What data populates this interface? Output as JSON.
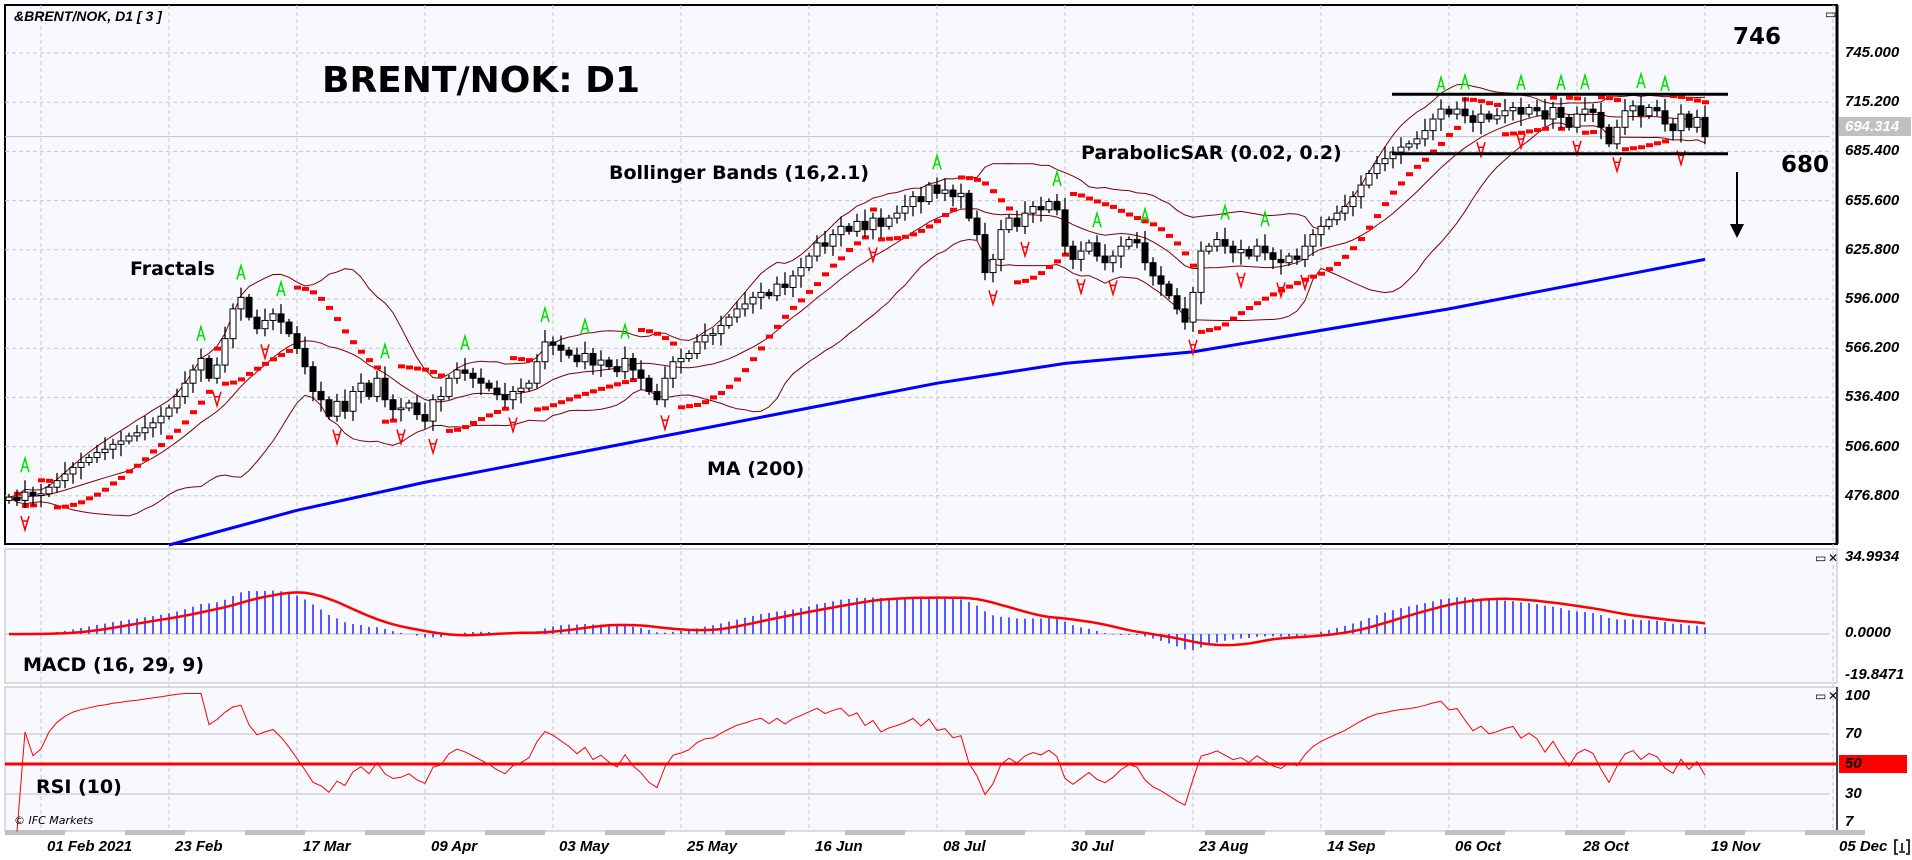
{
  "header": {
    "symbol": "&BRENT/NOK, D1 [ 3 ]"
  },
  "annotations": {
    "title": "BRENT/NOK: D1",
    "fractals": "Fractals",
    "bollinger": "Bollinger Bands (16,2.1)",
    "sar": "ParabolicSAR (0.02, 0.2)",
    "ma": "MA (200)",
    "macd": "MACD (16, 29, 9)",
    "rsi": "RSI (10)",
    "level_high": "746",
    "level_low": "680",
    "copyright": "© IFC Markets"
  },
  "price_axis": {
    "labels": [
      "745.000",
      "715.200",
      "685.400",
      "655.600",
      "625.800",
      "596.000",
      "566.200",
      "536.400",
      "506.600",
      "476.800"
    ],
    "current_price": "694.314"
  },
  "macd_axis": {
    "labels": [
      "34.9934",
      "0.0000",
      "-19.8471"
    ]
  },
  "rsi_axis": {
    "labels": [
      "100",
      "70",
      "50",
      "30",
      "7"
    ]
  },
  "colors": {
    "background": "#f7f9ff",
    "bollinger": "#800000",
    "sar": "#ff0000",
    "ma": "#0000ff",
    "fractal_up": "#00e000",
    "fractal_down": "#ff0000",
    "macd_hist": "#0000ff",
    "macd_signal": "#ff0000",
    "rsi": "#ff0000",
    "current_price_box": "#c0c0c0",
    "rsi_level_box": "#ff0000"
  },
  "chart_data": {
    "type": "candlestick",
    "title": "BRENT/NOK: D1",
    "x_ticks": [
      "01 Feb 2021",
      "23 Feb",
      "17 Mar",
      "09 Apr",
      "03 May",
      "25 May",
      "16 Jun",
      "08 Jul",
      "30 Jul",
      "23 Aug",
      "14 Sep",
      "06 Oct",
      "28 Oct",
      "19 Nov",
      "05 Dec"
    ],
    "ylim": [
      447,
      775
    ],
    "closes": [
      476,
      474,
      479,
      477,
      478,
      482,
      486,
      490,
      494,
      497,
      500,
      503,
      505,
      508,
      510,
      513,
      515,
      518,
      521,
      525,
      530,
      537,
      545,
      553,
      560,
      548,
      556,
      572,
      590,
      597,
      585,
      578,
      583,
      587,
      582,
      575,
      566,
      555,
      540,
      535,
      525,
      534,
      528,
      540,
      545,
      537,
      548,
      535,
      529,
      530,
      533,
      526,
      522,
      535,
      537,
      548,
      553,
      551,
      548,
      545,
      542,
      538,
      535,
      540,
      542,
      545,
      558,
      570,
      568,
      565,
      562,
      558,
      563,
      556,
      559,
      555,
      552,
      560,
      553,
      548,
      540,
      535,
      548,
      558,
      560,
      563,
      570,
      574,
      575,
      580,
      585,
      590,
      593,
      597,
      600,
      598,
      605,
      603,
      610,
      615,
      622,
      630,
      628,
      635,
      640,
      637,
      643,
      638,
      645,
      640,
      645,
      648,
      652,
      658,
      655,
      665,
      660,
      662,
      658,
      660,
      645,
      635,
      612,
      620,
      638,
      645,
      640,
      648,
      652,
      650,
      655,
      650,
      628,
      620,
      625,
      630,
      622,
      618,
      622,
      628,
      632,
      630,
      618,
      610,
      605,
      598,
      590,
      582,
      600,
      625,
      628,
      632,
      628,
      624,
      626,
      622,
      628,
      624,
      620,
      618,
      622,
      620,
      628,
      635,
      640,
      644,
      648,
      652,
      658,
      665,
      672,
      678,
      681,
      685,
      688,
      690,
      693,
      698,
      705,
      711,
      708,
      711,
      707,
      703,
      708,
      705,
      707,
      710,
      712,
      708,
      712,
      710,
      705,
      712,
      706,
      700,
      708,
      711,
      709,
      700,
      690,
      700,
      710,
      713,
      707,
      712,
      710,
      702,
      698,
      708,
      700,
      706,
      694.314
    ],
    "ma200": {
      "x_ticks_ref": [
        "23 Feb",
        "17 Mar",
        "09 Apr",
        "03 May",
        "25 May",
        "08 Jul",
        "30 Jul",
        "23 Aug",
        "06 Oct",
        "19 Nov"
      ],
      "values": [
        447,
        468,
        485,
        500,
        515,
        545,
        557,
        564,
        590,
        620
      ]
    },
    "bollinger": {
      "period": 16,
      "deviation": 2.1
    },
    "parabolic_sar": {
      "step": 0.02,
      "max": 0.2
    },
    "macd": {
      "fast": 16,
      "slow": 29,
      "signal": 9,
      "ylim": [
        -19.8471,
        34.9934
      ]
    },
    "rsi": {
      "period": 10,
      "levels": [
        70,
        50,
        30
      ],
      "ylim": [
        0,
        100
      ]
    },
    "channel": {
      "resistance": 720,
      "support": 684
    },
    "target_levels": [
      746,
      680
    ]
  }
}
